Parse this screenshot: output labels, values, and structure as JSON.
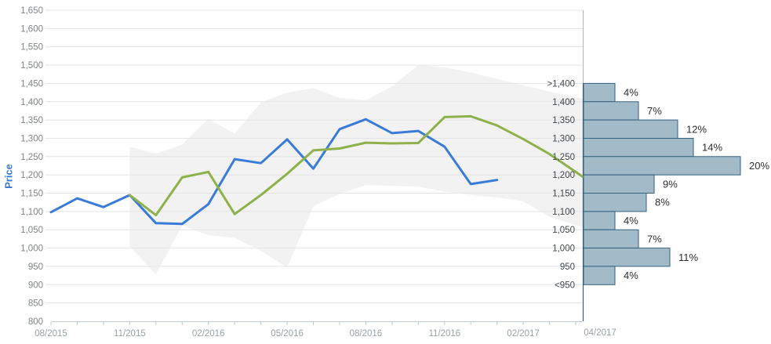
{
  "colors": {
    "actual_line": "#3b7bd8",
    "forecast_line": "#8eb14b",
    "band_fill": "#f2f2f2",
    "gridline": "#e4e4e4",
    "axis_line": "#bccbd5",
    "y_tick_label": "#7f8489",
    "x_tick_label": "#98a1a8",
    "bin_edge_label": "#40464b",
    "percent_label": "#2e2e2e",
    "bar_fill": "#a3bbc8",
    "bar_stroke": "#34617e",
    "separator_top": "#a9b6bd",
    "separator": "#3c6176",
    "y_axis_title": "#3b78d4"
  },
  "chart_data": [
    {
      "type": "line",
      "title": "",
      "ylabel": "Price",
      "ylim": [
        800,
        1650
      ],
      "ytick_step": 50,
      "grid": true,
      "legend": "none",
      "y_tick_labels": [
        "1,650",
        "1,600",
        "1,550",
        "1,500",
        "1,450",
        "1,400",
        "1,350",
        "1,300",
        "1,250",
        "1,200",
        "1,150",
        "1,100",
        "1,050",
        "1,000",
        "950",
        "900",
        "850",
        "800"
      ],
      "x_months": [
        "08/2015",
        "09/2015",
        "10/2015",
        "11/2015",
        "12/2015",
        "01/2016",
        "02/2016",
        "03/2016",
        "04/2016",
        "05/2016",
        "06/2016",
        "07/2016",
        "08/2016",
        "09/2016",
        "10/2016",
        "11/2016",
        "12/2016",
        "01/2017",
        "02/2017",
        "03/2017",
        "04/2017"
      ],
      "x_axis_labels": [
        "08/2015",
        "11/2015",
        "02/2016",
        "05/2016",
        "08/2016",
        "11/2016",
        "02/2017"
      ],
      "series": [
        {
          "name": "price-actual",
          "color": "#3b7bd8",
          "start_month": "08/2015",
          "values": [
            1098,
            1136,
            1112,
            1145,
            1068,
            1066,
            1120,
            1243,
            1232,
            1297,
            1217,
            1325,
            1352,
            1314,
            1320,
            1277,
            1175,
            1186
          ]
        },
        {
          "name": "price-forecast",
          "color": "#8eb14b",
          "start_month": "11/2015",
          "values": [
            1145,
            1090,
            1193,
            1208,
            1093,
            1145,
            1203,
            1267,
            1272,
            1288,
            1286,
            1287,
            1358,
            1360,
            1335,
            1298,
            1257,
            1195
          ]
        }
      ],
      "band": {
        "name": "forecast-uncertainty-range",
        "color": "#f2f2f2",
        "start_month": "11/2015",
        "lower": [
          1005,
          928,
          1062,
          1035,
          1028,
          993,
          947,
          1115,
          1148,
          1172,
          1170,
          1168,
          1155,
          1145,
          1138,
          1128,
          1085,
          1057
        ],
        "upper": [
          1277,
          1258,
          1283,
          1353,
          1313,
          1398,
          1425,
          1437,
          1410,
          1404,
          1442,
          1500,
          1494,
          1480,
          1462,
          1445,
          1428,
          1408
        ]
      }
    },
    {
      "type": "bar",
      "orientation": "horizontal",
      "axis_label": "04/2017",
      "unit": "%",
      "bin_edge_labels": [
        ">1,400",
        "1,400",
        "1,350",
        "1,300",
        "1,250",
        "1,200",
        "1,150",
        "1,100",
        "1,050",
        "1,000",
        "950",
        "<950"
      ],
      "bars": [
        {
          "lower": 1400,
          "upper": 1450,
          "percent": 4,
          "label": "4%"
        },
        {
          "lower": 1350,
          "upper": 1400,
          "percent": 7,
          "label": "7%"
        },
        {
          "lower": 1300,
          "upper": 1350,
          "percent": 12,
          "label": "12%"
        },
        {
          "lower": 1250,
          "upper": 1300,
          "percent": 14,
          "label": "14%"
        },
        {
          "lower": 1200,
          "upper": 1250,
          "percent": 20,
          "label": "20%"
        },
        {
          "lower": 1150,
          "upper": 1200,
          "percent": 9,
          "label": "9%"
        },
        {
          "lower": 1100,
          "upper": 1150,
          "percent": 8,
          "label": "8%"
        },
        {
          "lower": 1050,
          "upper": 1100,
          "percent": 4,
          "label": "4%"
        },
        {
          "lower": 1000,
          "upper": 1050,
          "percent": 7,
          "label": "7%"
        },
        {
          "lower": 950,
          "upper": 1000,
          "percent": 11,
          "label": "11%"
        },
        {
          "lower": 900,
          "upper": 950,
          "percent": 4,
          "label": "4%"
        }
      ]
    }
  ]
}
